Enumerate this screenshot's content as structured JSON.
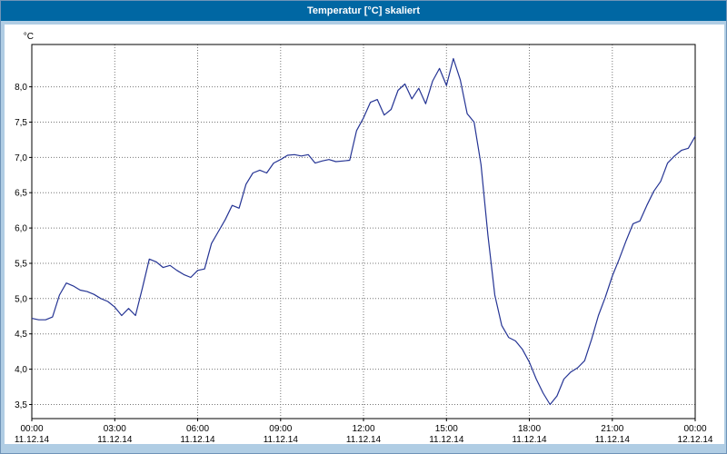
{
  "window": {
    "title": "Temperatur [°C] skaliert"
  },
  "colors": {
    "titlebar_bg": "#0067a3",
    "title_text": "#ffffff",
    "window_bg": "#b0cde4",
    "plot_border": "#000000",
    "grid": "#777777",
    "line": "#253494"
  },
  "chart_data": {
    "type": "line",
    "title": "Temperatur [°C] skaliert",
    "ylabel": "°C",
    "xlabel": "",
    "grid": "dotted",
    "legend": "none",
    "ylim": [
      3.3,
      8.6
    ],
    "xlim_hours": [
      0,
      24
    ],
    "x_step_hours": 0.25,
    "y_ticks": [
      {
        "value": 3.5,
        "label": "3,5"
      },
      {
        "value": 4.0,
        "label": "4,0"
      },
      {
        "value": 4.5,
        "label": "4,5"
      },
      {
        "value": 5.0,
        "label": "5,0"
      },
      {
        "value": 5.5,
        "label": "5,5"
      },
      {
        "value": 6.0,
        "label": "6,0"
      },
      {
        "value": 6.5,
        "label": "6,5"
      },
      {
        "value": 7.0,
        "label": "7,0"
      },
      {
        "value": 7.5,
        "label": "7,5"
      },
      {
        "value": 8.0,
        "label": "8,0"
      }
    ],
    "x_ticks": [
      {
        "hour": 0,
        "time": "00:00",
        "date": "11.12.14"
      },
      {
        "hour": 3,
        "time": "03:00",
        "date": "11.12.14"
      },
      {
        "hour": 6,
        "time": "06:00",
        "date": "11.12.14"
      },
      {
        "hour": 9,
        "time": "09:00",
        "date": "11.12.14"
      },
      {
        "hour": 12,
        "time": "12:00",
        "date": "11.12.14"
      },
      {
        "hour": 15,
        "time": "15:00",
        "date": "11.12.14"
      },
      {
        "hour": 18,
        "time": "18:00",
        "date": "11.12.14"
      },
      {
        "hour": 21,
        "time": "21:00",
        "date": "11.12.14"
      },
      {
        "hour": 24,
        "time": "00:00",
        "date": "12.12.14"
      }
    ],
    "series": [
      {
        "name": "Temperatur",
        "values": [
          4.72,
          4.7,
          4.7,
          4.74,
          5.05,
          5.22,
          5.18,
          5.12,
          5.1,
          5.06,
          5.0,
          4.96,
          4.88,
          4.76,
          4.86,
          4.76,
          5.15,
          5.56,
          5.52,
          5.44,
          5.47,
          5.4,
          5.34,
          5.3,
          5.4,
          5.42,
          5.78,
          5.95,
          6.12,
          6.32,
          6.28,
          6.62,
          6.78,
          6.82,
          6.78,
          6.92,
          6.97,
          7.03,
          7.04,
          7.02,
          7.04,
          6.92,
          6.95,
          6.97,
          6.94,
          6.95,
          6.96,
          7.38,
          7.56,
          7.78,
          7.82,
          7.6,
          7.68,
          7.95,
          8.04,
          7.83,
          7.98,
          7.76,
          8.08,
          8.26,
          8.02,
          8.4,
          8.1,
          7.62,
          7.5,
          6.9,
          5.9,
          5.05,
          4.62,
          4.45,
          4.4,
          4.28,
          4.1,
          3.86,
          3.66,
          3.5,
          3.62,
          3.86,
          3.96,
          4.02,
          4.12,
          4.42,
          4.76,
          5.02,
          5.32,
          5.56,
          5.82,
          6.06,
          6.1,
          6.32,
          6.52,
          6.66,
          6.92,
          7.02,
          7.1,
          7.13,
          7.3
        ]
      }
    ]
  }
}
